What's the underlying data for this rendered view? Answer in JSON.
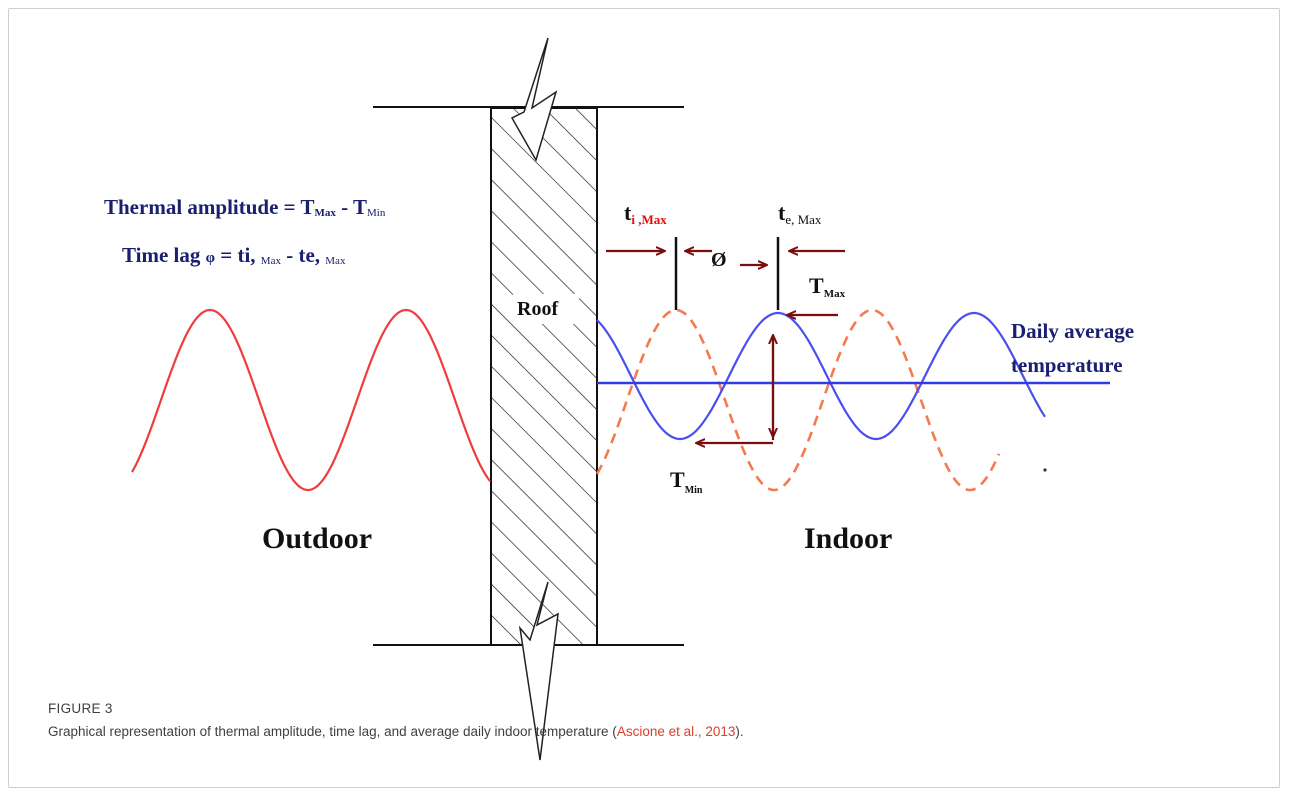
{
  "diagram": {
    "formula_amplitude": {
      "prefix": "Thermal amplitude = T",
      "sub1": "Max",
      "mid": " - T",
      "sub2": "Min"
    },
    "formula_lag": {
      "prefix": "Time lag ",
      "phi": "φ",
      "eq": " = ti, ",
      "sub1": "Max",
      "mid": " - te, ",
      "sub2": "Max"
    },
    "roof_label": "Roof",
    "outdoor_label": "Outdoor",
    "indoor_label": "Indoor",
    "ti_max": {
      "main": "t",
      "sub": "i ,Max"
    },
    "te_max": {
      "main": "t",
      "sub": "e, Max"
    },
    "phi_label": "Ø",
    "tmax_label": {
      "main": "T",
      "sub": "Max"
    },
    "tmin_label": {
      "main": "T",
      "sub": "Min"
    },
    "daily_avg_line1": "Daily average",
    "daily_avg_line2": "temperature",
    "colors": {
      "outdoor_wave": "#f03c3c",
      "indoor_dashed": "#f47a4f",
      "indoor_wave": "#4a4ef0",
      "average_line": "#2f3be6",
      "arrows": "#7a0e0e",
      "formula_text": "#1a2070",
      "ti_sub": "#e01010"
    }
  },
  "caption": {
    "label": "FIGURE 3",
    "text": "Graphical representation of thermal amplitude, time lag, and average daily indoor temperature (",
    "link": "Ascione et al., 2013",
    "suffix": ")."
  }
}
